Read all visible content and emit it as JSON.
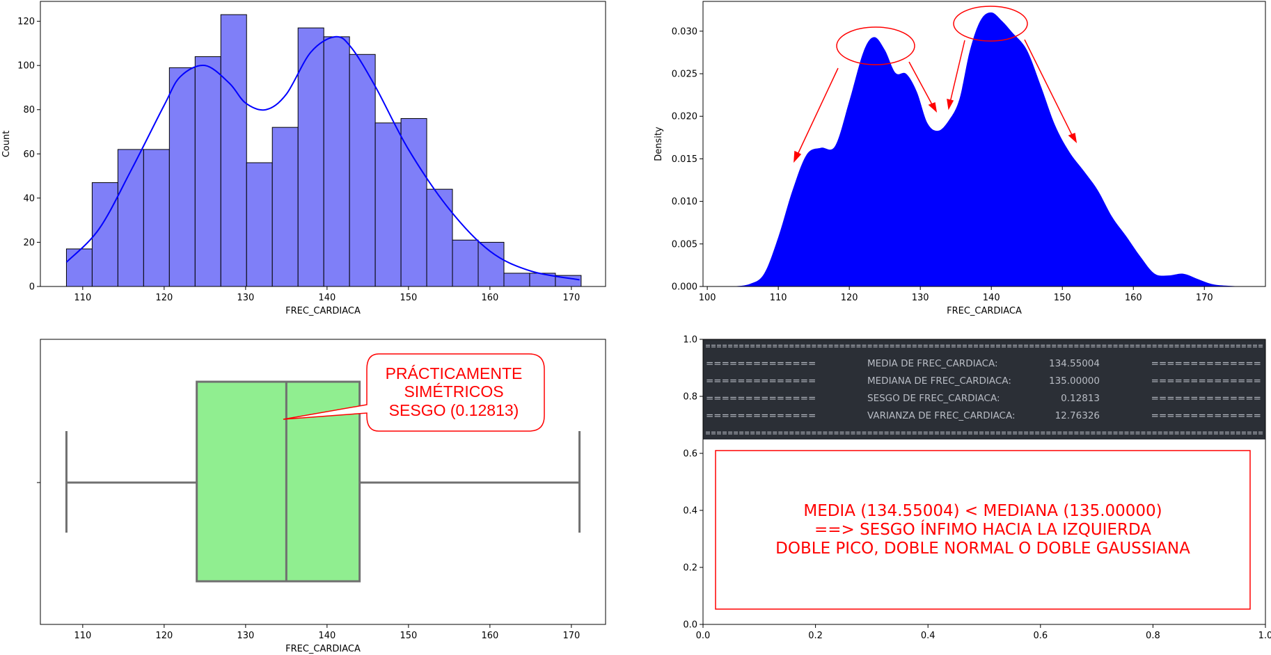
{
  "colors": {
    "hist_fill": "#7f7ff8",
    "kde_line": "#0000ff",
    "density_fill": "#0000ff",
    "box_fill": "#90ee90",
    "box_line": "#707070",
    "annotation_red": "#ff0000",
    "console_bg": "#2b2f36",
    "console_text": "#b8bcc4"
  },
  "chart_data": [
    {
      "id": "histogram",
      "type": "bar",
      "xlabel": "FREC_CARDIACA",
      "ylabel": "Count",
      "xlim": [
        104.8,
        174.2
      ],
      "ylim": [
        0,
        129
      ],
      "x_ticks": [
        "110",
        "120",
        "130",
        "140",
        "150",
        "160",
        "170"
      ],
      "x_tick_values": [
        110,
        120,
        130,
        140,
        150,
        160,
        170
      ],
      "y_ticks": [
        "0",
        "20",
        "40",
        "60",
        "80",
        "100",
        "120"
      ],
      "y_tick_values": [
        0,
        20,
        40,
        60,
        80,
        100,
        120
      ],
      "bin_edges": [
        108,
        111.16,
        114.32,
        117.48,
        120.64,
        123.8,
        126.96,
        130.12,
        133.28,
        136.44,
        139.6,
        142.76,
        145.92,
        149.08,
        152.24,
        155.4,
        158.56,
        161.72,
        164.88,
        168.04,
        171.2
      ],
      "counts": [
        17,
        47,
        62,
        62,
        99,
        104,
        123,
        56,
        72,
        117,
        113,
        105,
        74,
        76,
        44,
        21,
        20,
        6,
        6,
        5
      ],
      "kde": {
        "x": [
          108,
          112,
          116,
          120,
          122,
          125,
          128,
          130,
          132.5,
          135,
          138,
          141,
          143,
          146,
          150,
          155,
          160,
          165,
          171
        ],
        "y": [
          11,
          26,
          53,
          82,
          95,
          100,
          92,
          83,
          80,
          87,
          106,
          113,
          108,
          90,
          62,
          35,
          16,
          7,
          3
        ]
      }
    },
    {
      "id": "density",
      "type": "area",
      "xlabel": "FREC_CARDIACA",
      "ylabel": "Density",
      "xlim": [
        99.4,
        178.6
      ],
      "ylim": [
        0,
        0.0335
      ],
      "x_ticks": [
        "100",
        "110",
        "120",
        "130",
        "140",
        "150",
        "160",
        "170"
      ],
      "x_tick_values": [
        100,
        110,
        120,
        130,
        140,
        150,
        160,
        170
      ],
      "y_ticks": [
        "0.000",
        "0.005",
        "0.010",
        "0.015",
        "0.020",
        "0.025",
        "0.030"
      ],
      "y_tick_values": [
        0,
        0.005,
        0.01,
        0.015,
        0.02,
        0.025,
        0.03
      ],
      "x": [
        103.5,
        106,
        108,
        110,
        112,
        114,
        116,
        118,
        120,
        122,
        123.5,
        125,
        126.5,
        128,
        129.5,
        131,
        132.5,
        134,
        135.5,
        137,
        138.5,
        140,
        141.5,
        143,
        145,
        147,
        149,
        151,
        153,
        155,
        157,
        159,
        161,
        163,
        165,
        167,
        169,
        171,
        173,
        175.5
      ],
      "y": [
        0.0,
        0.0003,
        0.0015,
        0.0058,
        0.0113,
        0.0155,
        0.0163,
        0.0165,
        0.0218,
        0.0276,
        0.0293,
        0.0278,
        0.0251,
        0.025,
        0.0229,
        0.0192,
        0.0183,
        0.0195,
        0.022,
        0.0278,
        0.0313,
        0.0322,
        0.0312,
        0.0298,
        0.0278,
        0.0235,
        0.0189,
        0.0158,
        0.0136,
        0.0113,
        0.0082,
        0.0059,
        0.0035,
        0.0015,
        0.0013,
        0.0015,
        0.0009,
        0.0003,
        0.0001,
        0.0
      ]
    },
    {
      "id": "boxplot",
      "type": "box",
      "xlabel": "FREC_CARDIACA",
      "xlim": [
        104.8,
        174.2
      ],
      "x_ticks": [
        "110",
        "120",
        "130",
        "140",
        "150",
        "160",
        "170"
      ],
      "x_tick_values": [
        110,
        120,
        130,
        140,
        150,
        160,
        170
      ],
      "whisker_low": 108,
      "q1": 124,
      "median": 135,
      "q3": 144,
      "whisker_high": 171
    },
    {
      "id": "text-panel",
      "type": "table",
      "xlim": [
        0,
        1
      ],
      "ylim": [
        0,
        1
      ],
      "x_ticks": [
        "0.0",
        "0.2",
        "0.4",
        "0.6",
        "0.8",
        "1.0"
      ],
      "x_tick_values": [
        0,
        0.2,
        0.4,
        0.6,
        0.8,
        1.0
      ],
      "y_ticks": [
        "0.0",
        "0.2",
        "0.4",
        "0.6",
        "0.8",
        "1.0"
      ],
      "y_tick_values": [
        0,
        0.2,
        0.4,
        0.6,
        0.8,
        1.0
      ]
    }
  ],
  "annotations": {
    "box_callout": {
      "lines": [
        "PRÁCTICAMENTE",
        "SIMÉTRICOS",
        "SESGO (0.12813)"
      ]
    },
    "console": {
      "separator": "====================================================================================================",
      "rows": [
        {
          "left": "==============",
          "label": "MEDIA DE FREC_CARDIACA:",
          "value": "134.55004",
          "right": "=============="
        },
        {
          "left": "==============",
          "label": "MEDIANA DE FREC_CARDIACA:",
          "value": "135.00000",
          "right": "=============="
        },
        {
          "left": "==============",
          "label": "SESGO DE FREC_CARDIACA:",
          "value": "0.12813",
          "right": "=============="
        },
        {
          "left": "==============",
          "label": "VARIANZA DE FREC_CARDIACA:",
          "value": "12.76326",
          "right": "=============="
        }
      ]
    },
    "summary_box": {
      "lines": [
        "MEDIA (134.55004)  <  MEDIANA (135.00000)",
        "==> SESGO ÍNFIMO HACIA LA IZQUIERDA",
        "DOBLE PICO, DOBLE NORMAL O DOBLE GAUSSIANA"
      ]
    }
  }
}
